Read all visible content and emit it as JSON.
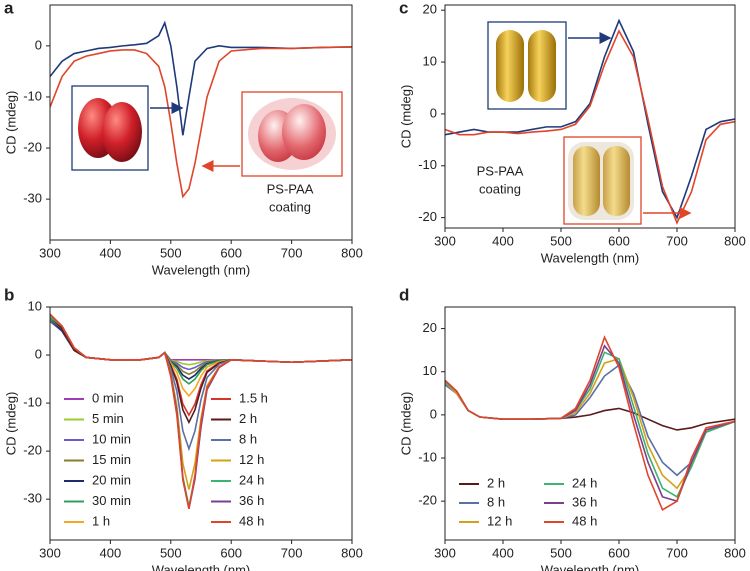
{
  "chart_data": [
    {
      "type": "line",
      "label": "a",
      "xlabel": "Wavelength (nm)",
      "ylabel": "CD (mdeg)",
      "annotation": [
        "PS-PAA",
        "coating"
      ],
      "xlim": [
        300,
        800
      ],
      "xticks": [
        300,
        400,
        500,
        600,
        700,
        800
      ],
      "ylim": [
        -38,
        8
      ],
      "yticks": [
        -30,
        -20,
        -10,
        0
      ],
      "x": [
        300,
        320,
        340,
        360,
        380,
        400,
        420,
        440,
        460,
        480,
        490,
        500,
        510,
        520,
        530,
        540,
        560,
        580,
        600,
        650,
        700,
        750,
        800
      ],
      "series": [
        {
          "color": "#1f3a7a",
          "values": [
            -6,
            -3,
            -1.5,
            -1,
            -0.5,
            -0.3,
            0,
            0.2,
            0.5,
            2,
            4.5,
            0,
            -8,
            -17.5,
            -10,
            -3,
            -0.5,
            0,
            -0.3,
            -0.3,
            -0.5,
            -0.3,
            -0.2
          ]
        },
        {
          "color": "#e0452a",
          "values": [
            -12,
            -6,
            -3,
            -2,
            -1.5,
            -1,
            -0.8,
            -0.8,
            -1.5,
            -4,
            -8,
            -15,
            -23,
            -29.5,
            -28,
            -23,
            -10,
            -3,
            -1,
            -0.5,
            -0.5,
            -0.3,
            -0.2
          ]
        }
      ]
    },
    {
      "type": "line",
      "label": "b",
      "xlabel": "Wavelength (nm)",
      "ylabel": "CD (mdeg)",
      "xlim": [
        300,
        800
      ],
      "xticks": [
        300,
        400,
        500,
        600,
        700,
        800
      ],
      "ylim": [
        -38.5,
        10
      ],
      "yticks": [
        -30,
        -20,
        -10,
        0,
        10
      ],
      "legend": {
        "position": "lower left",
        "columns": 2
      },
      "x": [
        300,
        320,
        340,
        360,
        400,
        450,
        480,
        490,
        500,
        510,
        520,
        530,
        540,
        550,
        560,
        580,
        600,
        700,
        800
      ],
      "series": [
        {
          "name": "0 min",
          "color": "#a03cb4",
          "values": [
            7,
            5,
            1,
            -0.5,
            -1,
            -1,
            -0.5,
            0.5,
            -1,
            -1,
            -1,
            -1,
            -1,
            -1,
            -1,
            -1,
            -1,
            -1.5,
            -1
          ]
        },
        {
          "name": "5 min",
          "color": "#9acd32",
          "values": [
            7,
            5,
            1,
            -0.5,
            -1,
            -1,
            -0.5,
            0.5,
            -1.1,
            -1.35,
            -1.8,
            -2,
            -1.8,
            -1.45,
            -1.2,
            -1.05,
            -1,
            -1.5,
            -1
          ]
        },
        {
          "name": "10 min",
          "color": "#6a5acd",
          "values": [
            7,
            5,
            1,
            -0.5,
            -1,
            -1,
            -0.5,
            0.5,
            -1.2,
            -1.7,
            -2.6,
            -3,
            -2.6,
            -1.9,
            -1.4,
            -1.1,
            -1,
            -1.5,
            -1
          ]
        },
        {
          "name": "15 min",
          "color": "#8b7d2b",
          "values": [
            7.5,
            5,
            1,
            -0.5,
            -1,
            -1,
            -0.5,
            0.5,
            -1.3,
            -2.05,
            -3.4,
            -4,
            -3.4,
            -2.35,
            -1.6,
            -1.15,
            -1,
            -1.5,
            -1
          ]
        },
        {
          "name": "20 min",
          "color": "#1f2a6b",
          "values": [
            7.5,
            5,
            1,
            -0.5,
            -1,
            -1,
            -0.5,
            0.5,
            -1.4,
            -2.4,
            -4.2,
            -5,
            -4.2,
            -2.8,
            -1.8,
            -1.2,
            -1,
            -1.5,
            -1
          ]
        },
        {
          "name": "30 min",
          "color": "#2ca05a",
          "values": [
            7.5,
            5.5,
            1,
            -0.5,
            -1,
            -1,
            -0.5,
            0.5,
            -1.5,
            -2.75,
            -5,
            -6,
            -5,
            -3.25,
            -2,
            -1.25,
            -1,
            -1.5,
            -1
          ]
        },
        {
          "name": "1 h",
          "color": "#f5a623",
          "values": [
            8,
            5.5,
            1,
            -0.5,
            -1,
            -1,
            -0.5,
            0.5,
            -1.75,
            -3.6,
            -7,
            -8.5,
            -7,
            -4.4,
            -2.5,
            -1.4,
            -1,
            -1.5,
            -1
          ]
        },
        {
          "name": "1.5 h",
          "color": "#d9342b",
          "values": [
            8,
            5.5,
            1,
            -0.5,
            -1,
            -1,
            -0.5,
            0.5,
            -2.2,
            -5,
            -10.2,
            -12.5,
            -10.2,
            -6.2,
            -3.3,
            -1.6,
            -1,
            -1.5,
            -1
          ]
        },
        {
          "name": "2 h",
          "color": "#5a1a1a",
          "values": [
            8,
            5.5,
            1,
            -0.5,
            -1,
            -1,
            -0.5,
            0.5,
            -2.3,
            -5.6,
            -11.4,
            -14,
            -11.4,
            -6.9,
            -3.6,
            -1.7,
            -1,
            -1.5,
            -1
          ]
        },
        {
          "name": "8 h",
          "color": "#5b6fa8",
          "values": [
            8,
            6,
            1.5,
            -0.5,
            -1,
            -1,
            -0.5,
            0.5,
            -2.9,
            -7.5,
            -15.8,
            -19.5,
            -15.8,
            -9.3,
            -4.7,
            -1.9,
            -1,
            -1.5,
            -1
          ]
        },
        {
          "name": "12 h",
          "color": "#d4a017",
          "values": [
            8,
            6,
            1.5,
            -0.5,
            -1,
            -1,
            -0.5,
            0.5,
            -3.7,
            -10.5,
            -22.6,
            -28,
            -22.6,
            -13.2,
            -6.4,
            -2.4,
            -1,
            -1.5,
            -1
          ]
        },
        {
          "name": "24 h",
          "color": "#3cb371",
          "values": [
            8,
            6,
            1.5,
            -0.5,
            -1,
            -1,
            -0.5,
            0.5,
            -4.1,
            -11.7,
            -25.4,
            -31.5,
            -25.4,
            -14.7,
            -7.1,
            -2.5,
            -1,
            -1.5,
            -1
          ]
        },
        {
          "name": "36 h",
          "color": "#7b3f8f",
          "values": [
            8.5,
            6,
            1.5,
            -0.5,
            -1,
            -1,
            -0.5,
            0.5,
            -4.1,
            -11.9,
            -25.8,
            -32,
            -25.8,
            -15,
            -7.2,
            -2.6,
            -1,
            -1.5,
            -1
          ]
        },
        {
          "name": "48 h",
          "color": "#e0452a",
          "values": [
            8.5,
            6,
            1.5,
            -0.5,
            -1,
            -1,
            -0.5,
            0.5,
            -4.5,
            -12.5,
            -26,
            -32,
            -25,
            -14,
            -6.8,
            -2.5,
            -1,
            -1.5,
            -1
          ]
        }
      ]
    },
    {
      "type": "line",
      "label": "c",
      "xlabel": "Wavelength (nm)",
      "ylabel": "CD (mdeg)",
      "annotation": [
        "PS-PAA",
        "coating"
      ],
      "xlim": [
        300,
        800
      ],
      "xticks": [
        300,
        400,
        500,
        600,
        700,
        800
      ],
      "ylim": [
        -22,
        21
      ],
      "yticks": [
        -20,
        -10,
        0,
        10,
        20
      ],
      "x": [
        300,
        325,
        350,
        375,
        400,
        425,
        450,
        475,
        500,
        525,
        550,
        575,
        600,
        625,
        650,
        675,
        700,
        725,
        750,
        775,
        800
      ],
      "series": [
        {
          "color": "#1f3a7a",
          "values": [
            -4,
            -3.5,
            -3,
            -3.5,
            -3.5,
            -3.5,
            -3,
            -2.5,
            -2.5,
            -1.5,
            2,
            11,
            18,
            12,
            -2,
            -15,
            -20,
            -12,
            -3,
            -1.5,
            -1
          ]
        },
        {
          "color": "#e0452a",
          "values": [
            -3,
            -4,
            -4,
            -3.5,
            -3.5,
            -3.8,
            -3.5,
            -3.3,
            -3,
            -2,
            1.5,
            9.5,
            16,
            11,
            -1,
            -14,
            -21,
            -15,
            -5,
            -2,
            -1.5
          ]
        }
      ]
    },
    {
      "type": "line",
      "label": "d",
      "xlabel": "Wavelength (nm)",
      "ylabel": "CD (mdeg)",
      "xlim": [
        300,
        800
      ],
      "xticks": [
        300,
        400,
        500,
        600,
        700,
        800
      ],
      "ylim": [
        -29,
        25
      ],
      "yticks": [
        -20,
        -10,
        0,
        10,
        20
      ],
      "legend": {
        "position": "lower left",
        "columns": 2
      },
      "x": [
        300,
        320,
        340,
        360,
        400,
        450,
        500,
        525,
        550,
        575,
        600,
        625,
        650,
        675,
        700,
        725,
        750,
        800
      ],
      "series": [
        {
          "name": "2 h",
          "color": "#5a1a1a",
          "values": [
            7,
            5,
            1,
            -0.5,
            -1,
            -1,
            -0.8,
            -0.5,
            0,
            1,
            1.5,
            0.5,
            -1,
            -2.5,
            -3.5,
            -3,
            -2,
            -1
          ]
        },
        {
          "name": "8 h",
          "color": "#5b6fa8",
          "values": [
            7,
            5,
            1,
            -0.5,
            -1,
            -1,
            -0.8,
            0,
            4,
            9,
            11.5,
            5,
            -5,
            -11,
            -14,
            -11,
            -4,
            -1.5
          ]
        },
        {
          "name": "12 h",
          "color": "#d4a017",
          "values": [
            7.5,
            5,
            1,
            -0.5,
            -1,
            -1,
            -0.8,
            0.5,
            5,
            12,
            13,
            4,
            -7,
            -14,
            -17,
            -12,
            -4,
            -1.5
          ]
        },
        {
          "name": "24 h",
          "color": "#3cb371",
          "values": [
            7.5,
            5.5,
            1,
            -0.5,
            -1,
            -1,
            -0.8,
            1,
            6,
            14.5,
            13,
            2,
            -9,
            -17,
            -19,
            -12,
            -4,
            -1.5
          ]
        },
        {
          "name": "36 h",
          "color": "#7b3f8f",
          "values": [
            8,
            5.5,
            1,
            -0.5,
            -1,
            -1,
            -0.8,
            1,
            7,
            16,
            12,
            0,
            -11,
            -19,
            -20,
            -11,
            -3.5,
            -1.5
          ]
        },
        {
          "name": "48 h",
          "color": "#e0452a",
          "values": [
            8,
            5.5,
            1,
            -0.5,
            -1,
            -1,
            -0.8,
            1.5,
            8,
            18,
            11,
            -2,
            -14,
            -22,
            -20,
            -10,
            -3,
            -1.5
          ]
        }
      ]
    }
  ]
}
